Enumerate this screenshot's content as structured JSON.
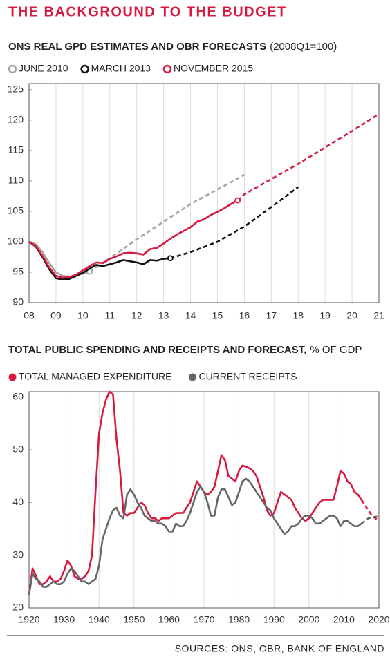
{
  "title": "THE BACKGROUND TO THE BUDGET",
  "source": "SOURCES: ONS, OBR, BANK OF ENGLAND",
  "chart_data": [
    {
      "type": "line",
      "title": "ONS REAL GPD ESTIMATES AND OBR FORECASTS",
      "subtitle": "(2008Q1=100)",
      "marker": "open-circle",
      "grid": "x",
      "xlim": [
        2008,
        2021
      ],
      "xticks": [
        {
          "value": 2008,
          "label": "08"
        },
        {
          "value": 2009,
          "label": "09"
        },
        {
          "value": 2010,
          "label": "10"
        },
        {
          "value": 2011,
          "label": "11"
        },
        {
          "value": 2012,
          "label": "12"
        },
        {
          "value": 2013,
          "label": "13"
        },
        {
          "value": 2014,
          "label": "14"
        },
        {
          "value": 2015,
          "label": "15"
        },
        {
          "value": 2016,
          "label": "16"
        },
        {
          "value": 2017,
          "label": "17"
        },
        {
          "value": 2018,
          "label": "18"
        },
        {
          "value": 2019,
          "label": "19"
        },
        {
          "value": 2020,
          "label": "20"
        },
        {
          "value": 2021,
          "label": "21"
        }
      ],
      "ylim": [
        90,
        126
      ],
      "yticks": [
        90,
        95,
        100,
        105,
        110,
        115,
        120,
        125
      ],
      "series": [
        {
          "name": "JUNE 2010",
          "color": "#a3a3a3",
          "dashed_from": 2010.25,
          "x": [
            2008,
            2008.25,
            2008.5,
            2008.75,
            2009,
            2009.25,
            2009.5,
            2009.75,
            2010,
            2010.25,
            2011,
            2012,
            2013,
            2014,
            2015,
            2016
          ],
          "values": [
            100,
            99.6,
            98.3,
            96.5,
            95,
            94.4,
            94.3,
            94.5,
            94.8,
            95.1,
            97.3,
            100.4,
            103.3,
            106.2,
            108.6,
            111
          ]
        },
        {
          "name": "MARCH 2013",
          "color": "#111111",
          "dashed_from": 2013.25,
          "x": [
            2008,
            2008.25,
            2008.5,
            2008.75,
            2009,
            2009.25,
            2009.5,
            2009.75,
            2010,
            2010.25,
            2010.5,
            2010.75,
            2011,
            2011.25,
            2011.5,
            2011.75,
            2012,
            2012.25,
            2012.5,
            2012.75,
            2013,
            2013.25,
            2014,
            2015,
            2016,
            2017,
            2018
          ],
          "values": [
            100,
            99.2,
            97.5,
            95.5,
            94,
            93.8,
            93.9,
            94.4,
            94.9,
            95.6,
            96.2,
            96,
            96.3,
            96.6,
            97,
            96.8,
            96.6,
            96.3,
            97,
            96.9,
            97.2,
            97.3,
            98.3,
            100,
            102.5,
            105.7,
            109
          ]
        },
        {
          "name": "NOVEMBER 2015",
          "color": "#d7193f",
          "dashed_from": 2015.75,
          "x": [
            2008,
            2008.25,
            2008.5,
            2008.75,
            2009,
            2009.25,
            2009.5,
            2009.75,
            2010,
            2010.25,
            2010.5,
            2010.75,
            2011,
            2011.25,
            2011.5,
            2011.75,
            2012,
            2012.25,
            2012.5,
            2012.75,
            2013,
            2013.25,
            2013.5,
            2013.75,
            2014,
            2014.25,
            2014.5,
            2014.75,
            2015,
            2015.25,
            2015.5,
            2015.75,
            2016,
            2017,
            2018,
            2019,
            2020,
            2021
          ],
          "values": [
            100,
            99.3,
            97.7,
            95.8,
            94.4,
            94.1,
            94.2,
            94.6,
            95.3,
            96,
            96.6,
            96.5,
            97.2,
            97.6,
            98.1,
            98.2,
            98.1,
            97.9,
            98.8,
            99,
            99.7,
            100.5,
            101.2,
            101.8,
            102.4,
            103.3,
            103.7,
            104.4,
            104.9,
            105.5,
            106.2,
            106.8,
            107.8,
            110.3,
            112.8,
            115.5,
            118.2,
            121
          ]
        }
      ]
    },
    {
      "type": "line",
      "title": "TOTAL PUBLIC SPENDING AND RECEIPTS AND FORECAST,",
      "subtitle": "% OF GDP",
      "marker": "dot",
      "grid": "x",
      "xlim": [
        1920,
        2020
      ],
      "xticks": [
        1920,
        1930,
        1940,
        1950,
        1960,
        1970,
        1980,
        1990,
        2000,
        2010,
        2020
      ],
      "ylim": [
        20,
        61
      ],
      "yticks": [
        20,
        30,
        40,
        50,
        60
      ],
      "x": [
        1920,
        1921,
        1922,
        1923,
        1924,
        1925,
        1926,
        1927,
        1928,
        1929,
        1930,
        1931,
        1932,
        1933,
        1934,
        1935,
        1936,
        1937,
        1938,
        1939,
        1940,
        1941,
        1942,
        1943,
        1944,
        1945,
        1946,
        1947,
        1948,
        1949,
        1950,
        1951,
        1952,
        1953,
        1954,
        1955,
        1956,
        1957,
        1958,
        1959,
        1960,
        1961,
        1962,
        1963,
        1964,
        1965,
        1966,
        1967,
        1968,
        1969,
        1970,
        1971,
        1972,
        1973,
        1974,
        1975,
        1976,
        1977,
        1978,
        1979,
        1980,
        1981,
        1982,
        1983,
        1984,
        1985,
        1986,
        1987,
        1988,
        1989,
        1990,
        1991,
        1992,
        1993,
        1994,
        1995,
        1996,
        1997,
        1998,
        1999,
        2000,
        2001,
        2002,
        2003,
        2004,
        2005,
        2006,
        2007,
        2008,
        2009,
        2010,
        2011,
        2012,
        2013,
        2014,
        2015,
        2016,
        2017,
        2018,
        2019,
        2020
      ],
      "series": [
        {
          "name": "TOTAL MANAGED EXPENDITURE",
          "color": "#d7193f",
          "dashed_from": 2015,
          "values": [
            22.5,
            27.5,
            26,
            24.5,
            24.5,
            25,
            26,
            25,
            25,
            25.5,
            27,
            29,
            28,
            26,
            25.5,
            25.5,
            26,
            27,
            30,
            42,
            53,
            57,
            59.5,
            61,
            60.5,
            52,
            46,
            38,
            37.5,
            38,
            38,
            39,
            40,
            39.5,
            38,
            37,
            37,
            36.5,
            37,
            37,
            37,
            37.5,
            38,
            38,
            38,
            39,
            40,
            42,
            44,
            43,
            42,
            41.5,
            42,
            43,
            46,
            49,
            48,
            45,
            44.5,
            44,
            46,
            47,
            46.8,
            46.5,
            46,
            45,
            43,
            41,
            38.5,
            37.5,
            38,
            40,
            42,
            41.5,
            41,
            40.5,
            39,
            38,
            37,
            36.5,
            37,
            38,
            39,
            40,
            40.5,
            40.5,
            40.5,
            40.5,
            43,
            46,
            45.5,
            44,
            43.5,
            42,
            41.5,
            40.5,
            39.5,
            38.5,
            37.5,
            37,
            36.5
          ]
        },
        {
          "name": "CURRENT RECEIPTS",
          "color": "#666666",
          "dashed_from": 2015,
          "values": [
            22.5,
            26.5,
            25.5,
            25,
            24,
            24,
            24.5,
            25,
            24.5,
            24.5,
            25,
            26.5,
            27.5,
            27,
            26,
            25,
            25,
            24.5,
            25,
            25.5,
            28,
            33,
            35,
            37,
            38.5,
            39,
            37.5,
            37,
            41.5,
            42.5,
            41.5,
            40,
            39,
            37.5,
            37,
            36.5,
            36.5,
            36,
            36,
            35.5,
            34.5,
            34.5,
            36,
            35.5,
            35.5,
            36.5,
            38,
            40,
            42,
            43,
            42,
            40,
            37.5,
            37.5,
            41,
            42.5,
            42.5,
            41,
            39.5,
            40,
            42,
            44,
            44.5,
            44,
            43,
            42,
            41,
            40,
            39,
            38.5,
            37,
            36,
            35,
            34,
            34.5,
            35.5,
            35.5,
            36,
            37,
            37.5,
            37.5,
            37,
            36,
            36,
            36.5,
            37,
            37.5,
            37.5,
            37,
            35.5,
            36.5,
            36.5,
            36,
            35.5,
            35.5,
            36,
            36.5,
            37,
            37.2,
            37.3,
            37.3
          ]
        }
      ]
    }
  ]
}
